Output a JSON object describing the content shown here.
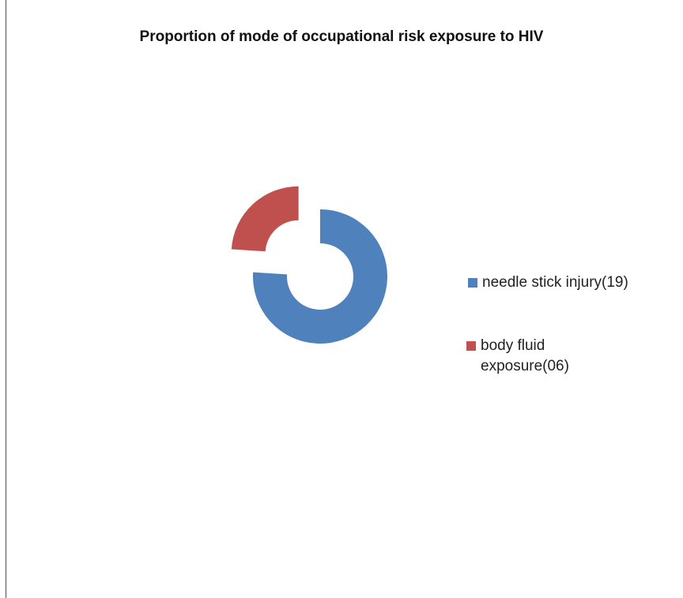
{
  "chart_data": {
    "type": "donut",
    "title": "Proportion of mode of occupational risk exposure to HIV",
    "categories": [
      "needle stick injury(19)",
      "body fluid exposure(06)"
    ],
    "values": [
      19,
      6
    ],
    "colors": [
      "#4f81bd",
      "#c0504d"
    ],
    "exploded": [
      false,
      true
    ],
    "legend": "right"
  }
}
